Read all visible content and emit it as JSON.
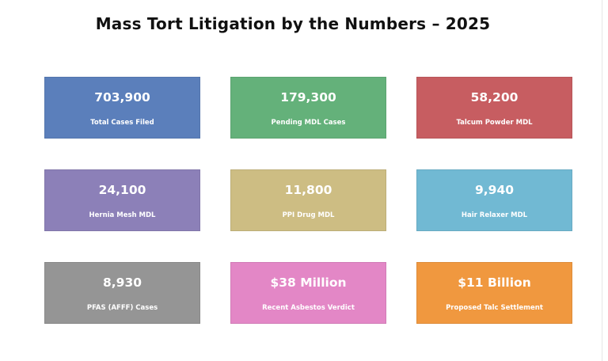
{
  "chart_data": {
    "type": "table",
    "title": "Mass Tort Litigation by the Numbers – 2025",
    "cards": [
      {
        "value": "703,900",
        "label": "Total Cases Filed",
        "color": "#5b7fbb"
      },
      {
        "value": "179,300",
        "label": "Pending MDL Cases",
        "color": "#64b17a"
      },
      {
        "value": "58,200",
        "label": "Talcum Powder MDL",
        "color": "#c75d61"
      },
      {
        "value": "24,100",
        "label": "Hernia Mesh MDL",
        "color": "#8c80b8"
      },
      {
        "value": "11,800",
        "label": "PPI Drug MDL",
        "color": "#cdbd83"
      },
      {
        "value": "9,940",
        "label": "Hair Relaxer MDL",
        "color": "#71b9d3"
      },
      {
        "value": "8,930",
        "label": "PFAS (AFFF) Cases",
        "color": "#959595"
      },
      {
        "value": "$38 Million",
        "label": "Recent Asbestos Verdict",
        "color": "#e387c6"
      },
      {
        "value": "$11 Billion",
        "label": "Proposed Talc Settlement",
        "color": "#f0983f"
      }
    ]
  }
}
